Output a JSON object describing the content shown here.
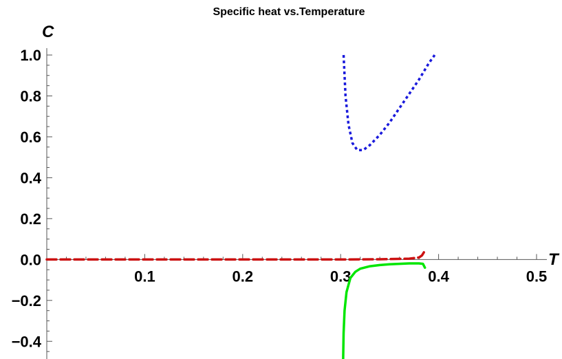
{
  "chart_data": {
    "type": "line",
    "title": "Specific heat vs.Temperature",
    "xlabel": "T",
    "ylabel": "C",
    "xlim": [
      0,
      0.5
    ],
    "ylim": [
      -0.5,
      1.0
    ],
    "x_ticks": [
      "0.1",
      "0.2",
      "0.3",
      "0.4",
      "0.5"
    ],
    "y_ticks": [
      "-0.4",
      "-0.2",
      "0.0",
      "0.2",
      "0.4",
      "0.6",
      "0.8",
      "1.0"
    ],
    "series": [
      {
        "color": "#1a1adc",
        "style": "dotted",
        "x": [
          0.303,
          0.305,
          0.308,
          0.312,
          0.317,
          0.323,
          0.33,
          0.34,
          0.35,
          0.36,
          0.37,
          0.38,
          0.39,
          0.396
        ],
        "y": [
          1.0,
          0.8,
          0.66,
          0.57,
          0.535,
          0.535,
          0.56,
          0.61,
          0.67,
          0.74,
          0.81,
          0.88,
          0.96,
          1.0
        ]
      },
      {
        "color": "#00e600",
        "style": "solid",
        "x": [
          0.3025,
          0.303,
          0.304,
          0.306,
          0.31,
          0.315,
          0.32,
          0.33,
          0.34,
          0.35,
          0.36,
          0.37,
          0.38,
          0.384,
          0.386
        ],
        "y": [
          -0.5,
          -0.36,
          -0.25,
          -0.16,
          -0.09,
          -0.06,
          -0.045,
          -0.033,
          -0.027,
          -0.023,
          -0.021,
          -0.019,
          -0.019,
          -0.021,
          -0.04
        ]
      },
      {
        "color": "#cc1111",
        "style": "dashed",
        "x": [
          0.0,
          0.05,
          0.1,
          0.15,
          0.2,
          0.25,
          0.3,
          0.34,
          0.37,
          0.38,
          0.383,
          0.385
        ],
        "y": [
          0.0,
          0.0,
          0.0,
          0.0,
          0.0,
          0.0,
          0.0,
          0.001,
          0.004,
          0.01,
          0.02,
          0.035
        ]
      }
    ]
  }
}
